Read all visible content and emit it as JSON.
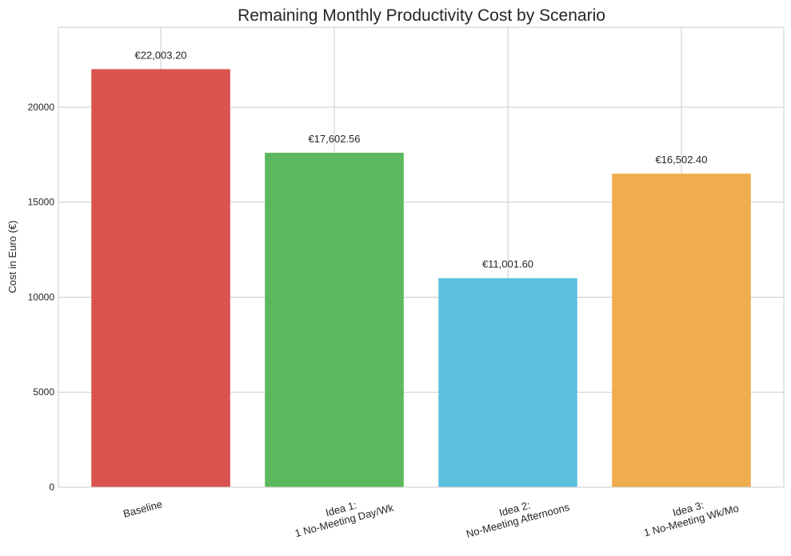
{
  "chart_data": {
    "type": "bar",
    "title": "Remaining Monthly Productivity Cost by Scenario",
    "xlabel": "",
    "ylabel": "Cost in Euro (€)",
    "categories": [
      [
        "Baseline"
      ],
      [
        "Idea 1:",
        "1 No-Meeting Day/Wk"
      ],
      [
        "Idea 2:",
        "No-Meeting Afternoons"
      ],
      [
        "Idea 3:",
        "1 No-Meeting Wk/Mo"
      ]
    ],
    "values": [
      22003.2,
      17602.56,
      11001.6,
      16502.4
    ],
    "data_labels": [
      "€22,003.20",
      "€17,602.56",
      "€11,001.60",
      "€16,502.40"
    ],
    "colors": [
      "#d9534f",
      "#5cb85c",
      "#5bc0de",
      "#f0ad4e"
    ],
    "ylim": [
      0,
      24210
    ],
    "yticks": [
      0,
      5000,
      10000,
      15000,
      20000
    ],
    "grid": true,
    "xtick_rotation_deg": 15
  }
}
